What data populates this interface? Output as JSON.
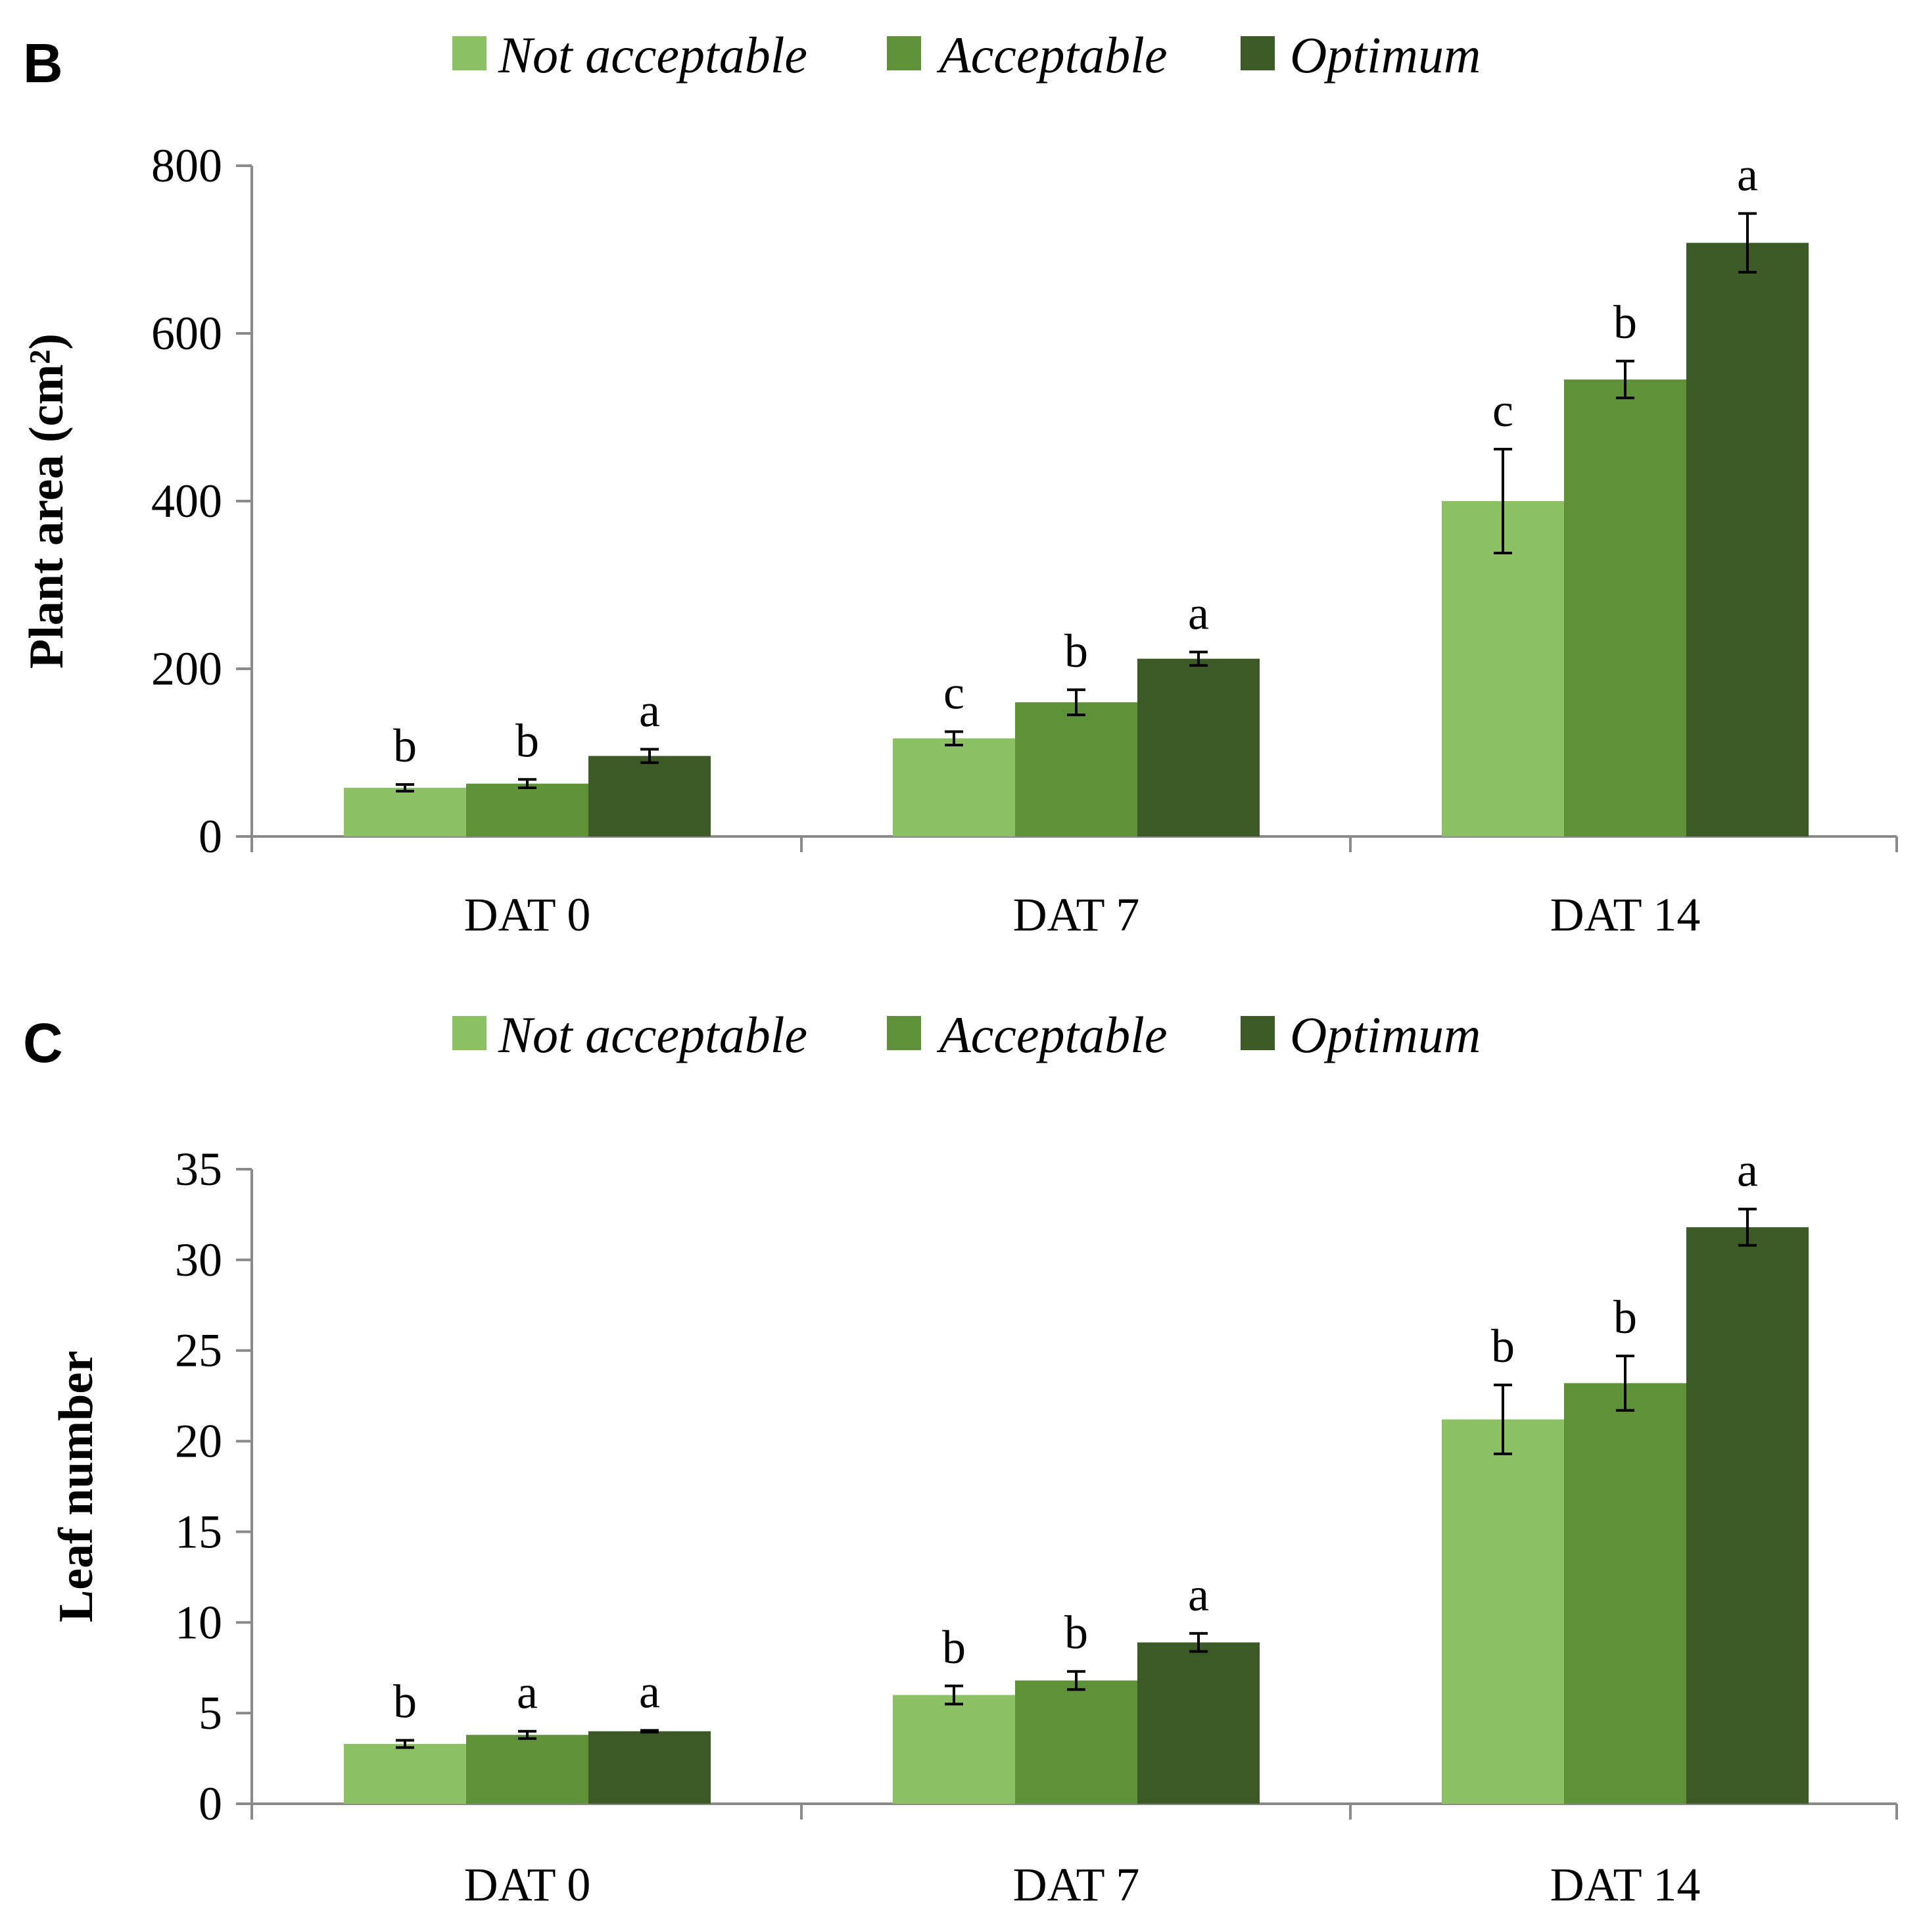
{
  "colors": {
    "not_acceptable": "#8bc063",
    "acceptable": "#5f9238",
    "optimum": "#3b5a25",
    "axis": "#8a8a8a"
  },
  "chart_data": [
    {
      "panel": "B",
      "type": "bar",
      "ylabel": "Plant area (cm²)",
      "xlabel": "",
      "categories": [
        "DAT 0",
        "DAT 7",
        "DAT 14"
      ],
      "ylim": [
        0,
        800
      ],
      "yticks": [
        0,
        200,
        400,
        600,
        800
      ],
      "grid": false,
      "legend": "top",
      "series": [
        {
          "name": "Not acceptable",
          "color_key": "not_acceptable",
          "values": [
            58,
            117,
            400
          ],
          "errors": [
            4,
            8,
            62
          ],
          "letters": [
            "b",
            "c",
            "c"
          ]
        },
        {
          "name": "Acceptable",
          "color_key": "acceptable",
          "values": [
            63,
            160,
            545
          ],
          "errors": [
            5,
            15,
            22
          ],
          "letters": [
            "b",
            "b",
            "b"
          ]
        },
        {
          "name": "Optimum",
          "color_key": "optimum",
          "values": [
            96,
            212,
            708
          ],
          "errors": [
            8,
            8,
            35
          ],
          "letters": [
            "a",
            "a",
            "a"
          ]
        }
      ]
    },
    {
      "panel": "C",
      "type": "bar",
      "ylabel": "Leaf number",
      "xlabel": "",
      "categories": [
        "DAT 0",
        "DAT 7",
        "DAT 14"
      ],
      "ylim": [
        0,
        35
      ],
      "yticks": [
        0,
        5,
        10,
        15,
        20,
        25,
        30,
        35
      ],
      "grid": false,
      "legend": "top",
      "series": [
        {
          "name": "Not acceptable",
          "color_key": "not_acceptable",
          "values": [
            3.3,
            6.0,
            21.2
          ],
          "errors": [
            0.2,
            0.5,
            1.9
          ],
          "letters": [
            "b",
            "b",
            "b"
          ]
        },
        {
          "name": "Acceptable",
          "color_key": "acceptable",
          "values": [
            3.8,
            6.8,
            23.2
          ],
          "errors": [
            0.2,
            0.5,
            1.5
          ],
          "letters": [
            "a",
            "b",
            "b"
          ]
        },
        {
          "name": "Optimum",
          "color_key": "optimum",
          "values": [
            4.0,
            8.9,
            31.8
          ],
          "errors": [
            0.05,
            0.5,
            1.0
          ],
          "letters": [
            "a",
            "a",
            "a"
          ]
        }
      ]
    }
  ]
}
